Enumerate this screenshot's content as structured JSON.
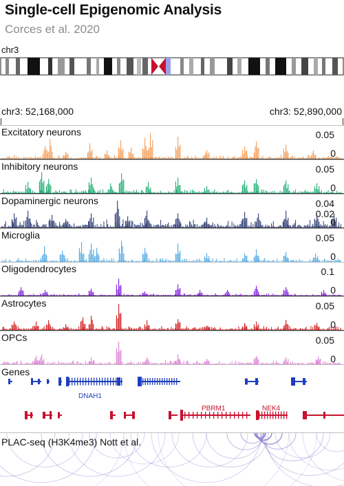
{
  "header": {
    "title": "Single-cell Epigenomic Analysis",
    "subtitle": "Corces et al. 2020"
  },
  "chromosome": {
    "label": "chr3"
  },
  "coordinates": {
    "start": "chr3: 52,168,000",
    "end": "chr3: 52,890,000"
  },
  "tracks": [
    {
      "label": "Excitatory neurons",
      "color": "#f4a261",
      "max_label": "0.05",
      "zero_label": "0"
    },
    {
      "label": "Inhibitory neurons",
      "color": "#2bb37d",
      "max_label": "0.05",
      "zero_label": "0"
    },
    {
      "label": "Dopaminergic neurons",
      "color": "#3d4a7d",
      "max_label": "0.04",
      "mid_label": "0.02",
      "zero_label": "0"
    },
    {
      "label": "Microglia",
      "color": "#5aaee3",
      "max_label": "0.05",
      "zero_label": "0"
    },
    {
      "label": "Oligodendrocytes",
      "color": "#8a2be2",
      "max_label": "0.1",
      "zero_label": "0"
    },
    {
      "label": "Astrocytes",
      "color": "#d42a2a",
      "max_label": "0.05",
      "zero_label": "0"
    },
    {
      "label": "OPCs",
      "color": "#e088d6",
      "max_label": "0.05",
      "zero_label": "0"
    }
  ],
  "genes": {
    "label": "Genes",
    "plus_color": "#1f3fbf",
    "minus_color": "#c8102e",
    "names": {
      "dnah1": "DNAH1",
      "pbrm1": "PBRM1",
      "nek4": "NEK4"
    }
  },
  "plac": {
    "label": "PLAC-seq (H3K4me3) Nott et al.",
    "color": "#7b68c8"
  }
}
